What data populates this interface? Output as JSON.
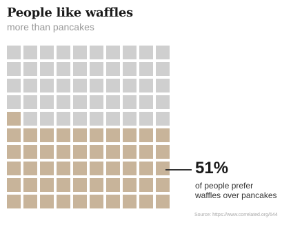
{
  "title": "People like waffles",
  "subtitle": "more than pancakes",
  "chart_data": {
    "type": "waffle",
    "total_cells": 100,
    "grid": {
      "rows": 10,
      "cols": 10
    },
    "highlighted_cells": 51,
    "highlight_color": "#c8b49a",
    "base_color": "#cfcfcf",
    "fill_order": "from bottom, left to right",
    "annotation": {
      "value": "51%",
      "text": "of people prefer waffles over pancakes"
    }
  },
  "source": "Source: https://www.correlated.org/644"
}
